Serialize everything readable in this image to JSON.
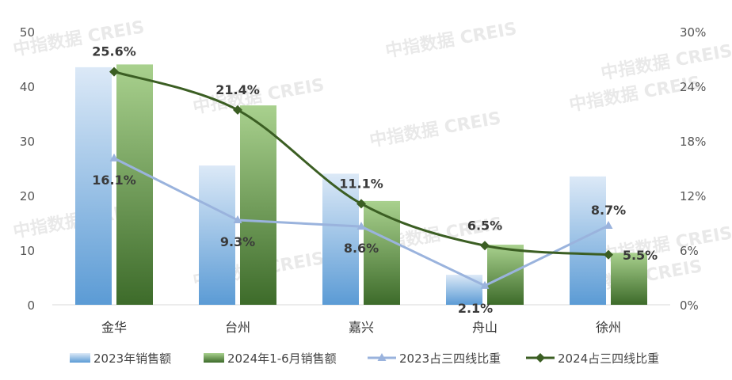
{
  "chart_data": {
    "type": "bar",
    "categories": [
      "金华",
      "台州",
      "嘉兴",
      "舟山",
      "徐州"
    ],
    "yticks_left": [
      "0",
      "10",
      "20",
      "30",
      "40",
      "50"
    ],
    "yticks_right": [
      "0%",
      "6%",
      "12%",
      "18%",
      "24%",
      "30%"
    ],
    "ylim_left": [
      0,
      50
    ],
    "ylim_right": [
      0,
      30
    ],
    "series": [
      {
        "name": "2023年销售额",
        "kind": "bar",
        "axis": "left",
        "values": [
          43.5,
          25.5,
          24.0,
          5.5,
          23.5
        ],
        "color_top": "#dce9f7",
        "color_bottom": "#5b9bd5"
      },
      {
        "name": "2024年1-6月销售额",
        "kind": "bar",
        "axis": "left",
        "values": [
          44.0,
          36.5,
          19.0,
          11.0,
          9.5
        ],
        "color_top": "#a9d18e",
        "color_bottom": "#3d6b2a"
      },
      {
        "name": "2023占三四线比重",
        "kind": "line",
        "axis": "right",
        "values": [
          16.1,
          9.3,
          8.6,
          2.1,
          8.7
        ],
        "labels": [
          "16.1%",
          "9.3%",
          "8.6%",
          "2.1%",
          "8.7%"
        ],
        "color": "#9ab3dd"
      },
      {
        "name": "2024占三四线比重",
        "kind": "line",
        "axis": "right",
        "values": [
          25.6,
          21.4,
          11.1,
          6.5,
          5.5
        ],
        "labels": [
          "25.6%",
          "21.4%",
          "11.1%",
          "6.5%",
          "5.5%"
        ],
        "color": "#3b5e23"
      }
    ],
    "watermark": "中指数据 CREIS",
    "legend_position": "bottom",
    "grid": false
  }
}
